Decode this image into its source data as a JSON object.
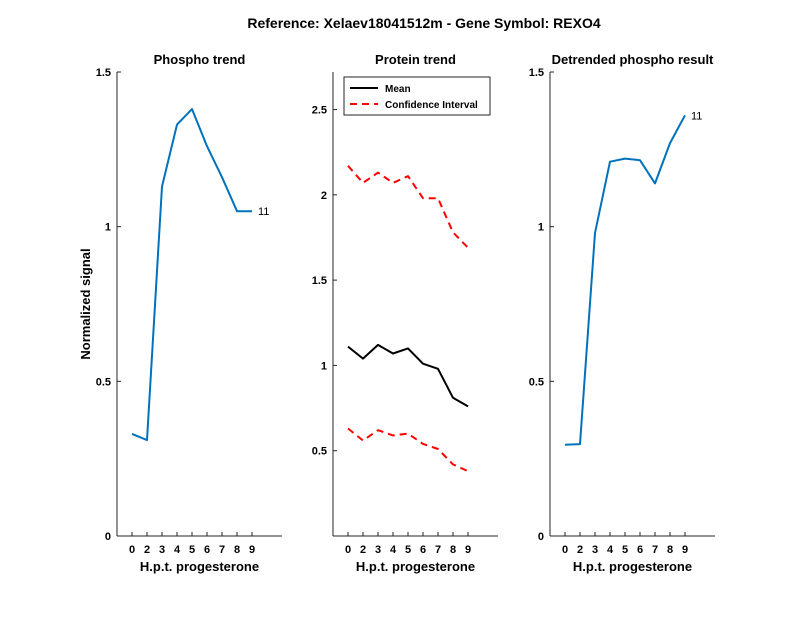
{
  "figure": {
    "suptitle": "Reference:  Xelaev18041512m - Gene Symbol:  REXO4"
  },
  "chart_data": [
    {
      "type": "line",
      "title": "Phospho trend",
      "xlabel": "H.p.t. progesterone",
      "ylabel": "Normalized signal",
      "xticks": [
        0,
        2,
        3,
        4,
        5,
        6,
        7,
        8,
        9
      ],
      "yticks": [
        0,
        0.5,
        1,
        1.5
      ],
      "ytick_labels": [
        "0",
        "0.5",
        "1",
        "1.5"
      ],
      "xlim": [
        -1,
        10
      ],
      "ylim": [
        0,
        1.5
      ],
      "series": [
        {
          "color": "#0072BD",
          "x": [
            0,
            1,
            2,
            3,
            4,
            5,
            6,
            7,
            8
          ],
          "y": [
            0.33,
            0.31,
            1.13,
            1.33,
            1.38,
            1.26,
            1.16,
            1.05,
            1.05
          ],
          "end_label": "11"
        }
      ]
    },
    {
      "type": "line",
      "title": "Protein trend",
      "xlabel": "H.p.t. progesterone",
      "xticks": [
        0,
        2,
        3,
        4,
        5,
        6,
        7,
        8,
        9
      ],
      "yticks": [
        0.5,
        1,
        1.5,
        2,
        2.5
      ],
      "ytick_labels": [
        "0.5",
        "1",
        "1.5",
        "2",
        "2.5"
      ],
      "xlim": [
        -1,
        10
      ],
      "ylim": [
        0,
        2.72
      ],
      "legend": {
        "position": "top-left",
        "entries": [
          "Mean",
          "Confidence Interval"
        ]
      },
      "series": [
        {
          "name": "Mean",
          "color": "#000000",
          "dash": "solid",
          "x": [
            0,
            1,
            2,
            3,
            4,
            5,
            6,
            7,
            8
          ],
          "y": [
            1.11,
            1.04,
            1.12,
            1.07,
            1.1,
            1.01,
            0.98,
            0.81,
            0.76
          ]
        },
        {
          "name": "Confidence Interval",
          "color": "#FF0000",
          "dash": "dashed",
          "x": [
            0,
            1,
            2,
            3,
            4,
            5,
            6,
            7,
            8
          ],
          "y": [
            2.17,
            2.07,
            2.13,
            2.07,
            2.11,
            1.98,
            1.98,
            1.78,
            1.69
          ]
        },
        {
          "name": "Confidence Interval",
          "color": "#FF0000",
          "dash": "dashed",
          "x": [
            0,
            1,
            2,
            3,
            4,
            5,
            6,
            7,
            8
          ],
          "y": [
            0.63,
            0.56,
            0.62,
            0.59,
            0.6,
            0.54,
            0.51,
            0.42,
            0.38
          ]
        }
      ]
    },
    {
      "type": "line",
      "title": "Detrended phospho result",
      "xlabel": "H.p.t. progesterone",
      "xticks": [
        0,
        2,
        3,
        4,
        5,
        6,
        7,
        8,
        9
      ],
      "yticks": [
        0,
        0.5,
        1,
        1.5
      ],
      "ytick_labels": [
        "0",
        "0.5",
        "1",
        "1.5"
      ],
      "xlim": [
        -1,
        10
      ],
      "ylim": [
        0,
        1.5
      ],
      "series": [
        {
          "color": "#0072BD",
          "x": [
            0,
            1,
            2,
            3,
            4,
            5,
            6,
            7,
            8
          ],
          "y": [
            0.295,
            0.297,
            0.98,
            1.21,
            1.22,
            1.215,
            1.14,
            1.27,
            1.36
          ],
          "end_label": "11"
        }
      ]
    }
  ]
}
